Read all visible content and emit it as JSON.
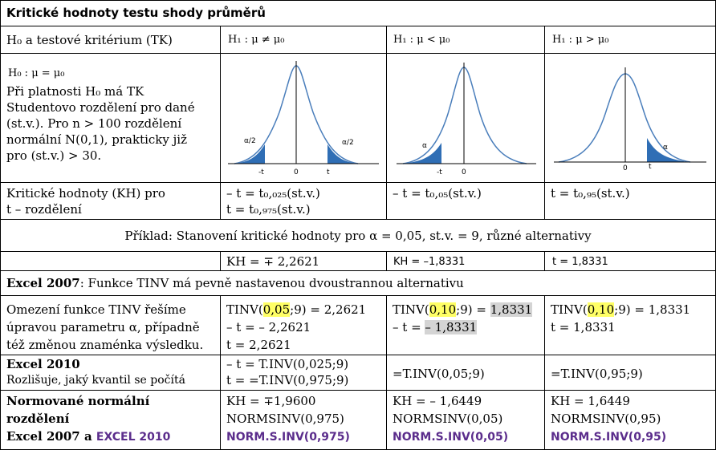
{
  "title": "Kritické hodnoty testu shody průměrů",
  "header": {
    "col0": "H₀ a testové kritérium (TK)",
    "col1": "H₁ : μ ≠ μ₀",
    "col2": "H₁ : μ < μ₀",
    "col3": "H₁ : μ > μ₀"
  },
  "hypothesis": {
    "h0": "H₀ : μ = μ₀",
    "lines": [
      "Při platnosti H₀ má TK",
      "Studentovo rozdělení  pro dané",
      "(st.v.). Pro n > 100 rozdělení",
      "normální N(0,1), prakticky již",
      "pro (st.v.) > 30."
    ]
  },
  "graphs": {
    "two_sided": {
      "left_alpha": "α/2",
      "right_alpha": "α/2",
      "ticks": [
        "-t",
        "0",
        "t"
      ]
    },
    "left": {
      "alpha": "α",
      "ticks": [
        "-t",
        "0"
      ]
    },
    "right": {
      "alpha": "α",
      "ticks": [
        "0",
        "t"
      ]
    }
  },
  "kh_row": {
    "label": [
      "Kritické hodnoty (KH) pro",
      "t – rozdělení"
    ],
    "col1": [
      "– t = t₀,₀₂₅(st.v.)",
      "t = t₀,₉₇₅(st.v.)"
    ],
    "col2": "– t = t₀,₀₅(st.v.)",
    "col3": "t =  t₀,₉₅(st.v.)"
  },
  "example": {
    "text": "Příklad: Stanovení kritické hodnoty pro  α = 0,05, st.v. = 9,  různé alternativy",
    "col1": "KH = ∓ 2,2621",
    "col2": "KH = –1,8331",
    "col3": "t = 1,8331"
  },
  "excel2007": {
    "prefix": "Excel 2007",
    "rest": ": Funkce TINV má pevně nastavenou dvoustrannou alternativu"
  },
  "tinv_row": {
    "label": [
      "Omezení funkce TINV řešíme",
      "úpravou parametru α, případně",
      "též změnou znaménka výsledku."
    ],
    "col1": {
      "fn": "TINV(",
      "arg": "0,05",
      "rest": ";9) = 2,2621",
      "line2": "– t = – 2,2621",
      "line3": "t = 2,2621"
    },
    "col2": {
      "fn": "TINV(",
      "arg": "0,10",
      "rest": ";9) = ",
      "val": "1,8331",
      "line2a": "– t = ",
      "line2b": "– 1,8331"
    },
    "col3": {
      "fn": "TINV(",
      "arg": "0,10",
      "rest": ";9) = 1,8331",
      "line2": "t =  1,8331"
    }
  },
  "excel2010": {
    "label": "Excel 2010",
    "sub": "Rozlišuje, jaký kvantil se počítá",
    "col1": [
      "– t = T.INV(0,025;9)",
      "t = =T.INV(0,975;9)"
    ],
    "col2": "=T.INV(0,05;9)",
    "col3": "=T.INV(0,95;9)"
  },
  "normal": {
    "label": [
      "Normované normální",
      "rozdělení"
    ],
    "label3a": "Excel 2007 a ",
    "label3b": "EXCEL 2010",
    "col1": [
      "KH = ∓1,9600",
      "NORMSINV(0,975)",
      "NORM.S.INV(0,975)"
    ],
    "col2": [
      "KH = – 1,6449",
      "NORMSINV(0,05)",
      "NORM.S.INV(0,05)"
    ],
    "col3": [
      "KH = 1,6449",
      "NORMSINV(0,95)",
      "NORM.S.INV(0,95)"
    ]
  },
  "colors": {
    "curve": "#4a7ebb",
    "fill": "#2f6eb5",
    "highlight": "#ffff66",
    "gray": "#d4d4d4",
    "purple": "#5b2d8c"
  }
}
